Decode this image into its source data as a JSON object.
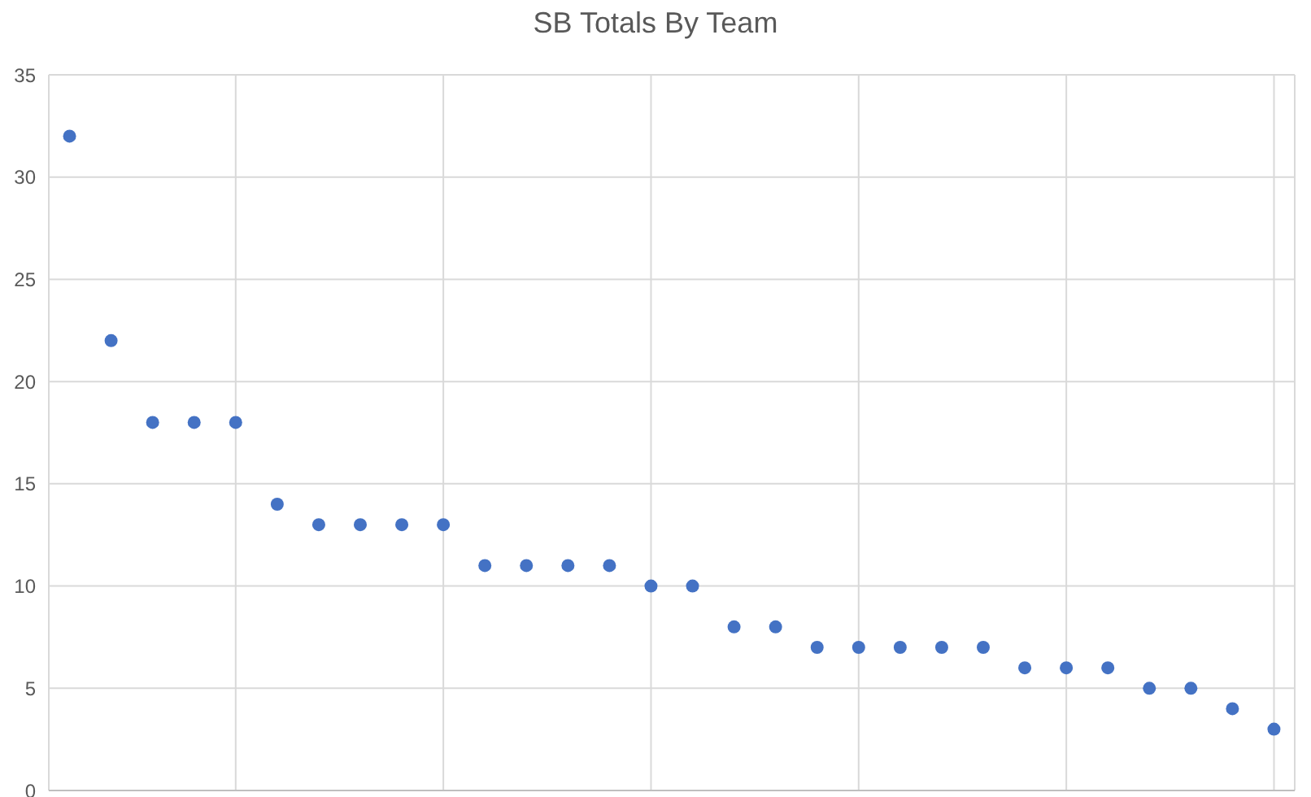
{
  "chart_data": {
    "type": "scatter",
    "title": "SB Totals By Team",
    "categories": [
      null,
      null,
      null,
      null,
      null,
      null,
      null,
      null,
      null,
      null,
      null,
      null,
      null,
      null,
      null,
      null,
      null,
      null,
      null,
      null,
      null,
      null,
      null,
      null,
      null,
      null,
      null,
      null,
      null,
      null
    ],
    "values": [
      32,
      22,
      18,
      18,
      18,
      14,
      13,
      13,
      13,
      13,
      11,
      11,
      11,
      11,
      10,
      10,
      8,
      8,
      7,
      7,
      7,
      7,
      7,
      6,
      6,
      6,
      5,
      5,
      4,
      3
    ],
    "color": "#4472c4",
    "ylim": [
      0,
      35
    ],
    "yticks": [
      0,
      5,
      10,
      15,
      20,
      25,
      30,
      35
    ],
    "grid": true,
    "marker": "circle"
  }
}
